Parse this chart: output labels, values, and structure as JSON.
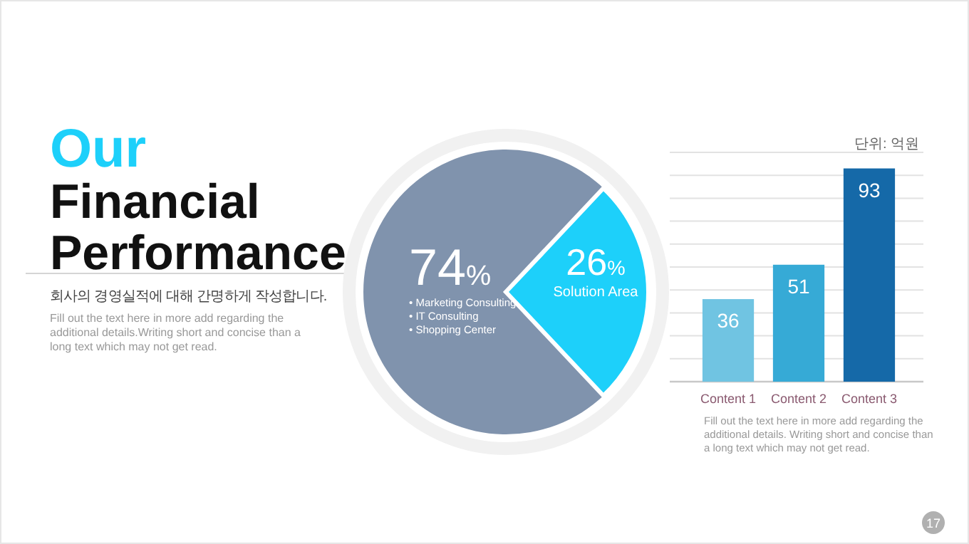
{
  "chart_data": [
    {
      "type": "pie",
      "title": "Our Financial Performance",
      "subtitle": "회사의 경영실적에 대해 간명하게 작성합니다.",
      "annotations": [
        "Fill out the text here in more add regarding the additional details.Writing short and concise than a long text which may not get read.",
        "• Marketing Consulting",
        "• IT Consulting",
        "• Shopping Center",
        "17"
      ],
      "categories": [
        null,
        "Solution Area"
      ],
      "values": [
        74,
        26
      ],
      "colors": [
        "#8093ad",
        "#1dd0fa"
      ],
      "value_labels": [
        "74%",
        "26%"
      ]
    },
    {
      "type": "bar",
      "categories": [
        "Content 1",
        "Content 2",
        "Content 3"
      ],
      "values": [
        36,
        51,
        93
      ],
      "colors": [
        "#70c4e2",
        "#36aad6",
        "#1569a8"
      ],
      "ylim": [
        0,
        100
      ],
      "yticks": [
        {
          "value": 0,
          "label": null
        },
        {
          "value": 10,
          "label": null
        },
        {
          "value": 20,
          "label": null
        },
        {
          "value": 30,
          "label": null
        },
        {
          "value": 40,
          "label": null
        },
        {
          "value": 50,
          "label": null
        },
        {
          "value": 60,
          "label": null
        },
        {
          "value": 70,
          "label": null
        },
        {
          "value": 80,
          "label": null
        },
        {
          "value": 90,
          "label": null
        },
        {
          "value": 100,
          "label": null
        }
      ],
      "grid": true,
      "tick_labels": "x",
      "data_labels": true,
      "annotations": [
        "단위: 억원",
        "Fill out the text here in more add regarding the additional details. Writing short and concise than a long text which may not get read."
      ]
    }
  ]
}
